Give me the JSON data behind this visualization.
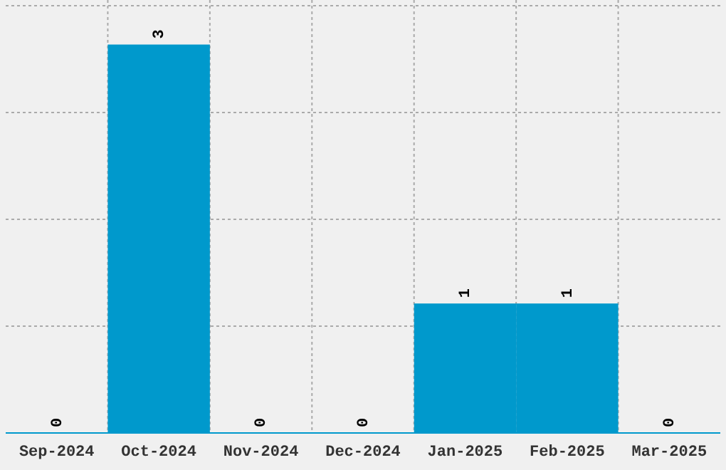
{
  "chart_data": {
    "type": "bar",
    "categories": [
      "Sep-2024",
      "Oct-2024",
      "Nov-2024",
      "Dec-2024",
      "Jan-2025",
      "Feb-2025",
      "Mar-2025"
    ],
    "values": [
      0,
      3,
      0,
      0,
      1,
      1,
      0
    ],
    "color": "#0099cc",
    "data_labels": true,
    "ylim": [
      0,
      3.3
    ],
    "yticks": [
      {
        "value": 0.825,
        "label": null
      },
      {
        "value": 1.65,
        "label": null
      },
      {
        "value": 2.475,
        "label": null
      },
      {
        "value": 3.3,
        "label": null
      }
    ],
    "tick_labels": "x",
    "grid": true
  }
}
